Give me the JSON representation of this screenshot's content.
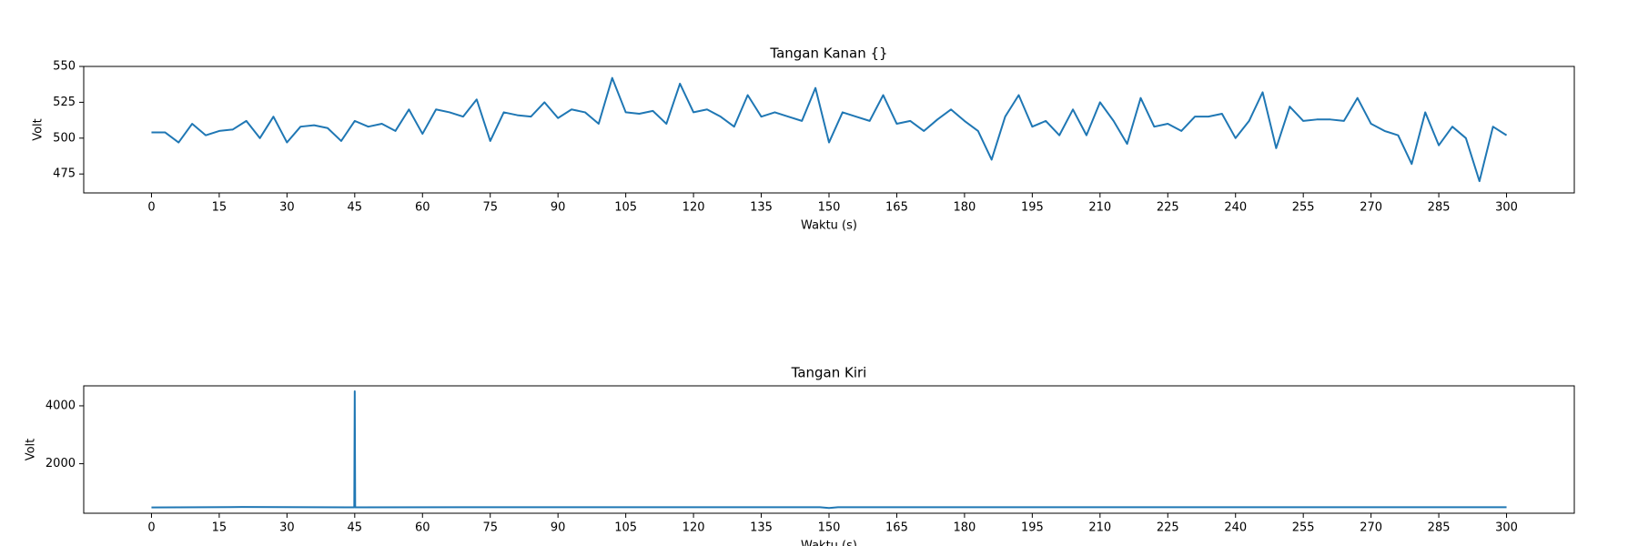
{
  "chart_data": [
    {
      "type": "line",
      "title": "Tangan Kanan {}",
      "xlabel": "Waktu (s)",
      "ylabel": "Volt",
      "x": [
        0,
        3,
        6,
        9,
        12,
        15,
        18,
        21,
        24,
        27,
        30,
        33,
        36,
        39,
        42,
        45,
        48,
        51,
        54,
        57,
        60,
        63,
        66,
        69,
        72,
        75,
        78,
        81,
        84,
        87,
        90,
        93,
        96,
        99,
        102,
        105,
        108,
        111,
        114,
        117,
        120,
        123,
        126,
        129,
        132,
        135,
        138,
        141,
        144,
        147,
        150,
        153,
        156,
        159,
        162,
        165,
        168,
        171,
        174,
        177,
        180,
        183,
        186,
        189,
        192,
        195,
        198,
        201,
        204,
        207,
        210,
        213,
        216,
        219,
        222,
        225,
        228,
        231,
        234,
        237,
        240,
        243,
        246,
        249,
        252,
        255,
        258,
        261,
        264,
        267,
        270,
        273,
        276,
        279,
        282,
        285,
        288,
        291,
        294,
        297,
        300
      ],
      "values": [
        504,
        504,
        497,
        510,
        502,
        505,
        506,
        512,
        500,
        515,
        497,
        508,
        509,
        507,
        498,
        512,
        508,
        510,
        505,
        520,
        503,
        520,
        518,
        515,
        527,
        498,
        518,
        516,
        515,
        525,
        514,
        520,
        518,
        510,
        542,
        518,
        517,
        519,
        510,
        538,
        518,
        520,
        515,
        508,
        530,
        515,
        518,
        515,
        512,
        535,
        497,
        518,
        515,
        512,
        530,
        510,
        512,
        505,
        513,
        520,
        512,
        505,
        485,
        515,
        530,
        508,
        512,
        502,
        520,
        502,
        525,
        512,
        496,
        528,
        508,
        510,
        505,
        515,
        515,
        517,
        500,
        512,
        532,
        493,
        522,
        512,
        513,
        513,
        512,
        528,
        510,
        505,
        502,
        482,
        518,
        495,
        508,
        500,
        470,
        508,
        502
      ],
      "color": "#1f77b4",
      "xlim": [
        -15,
        315
      ],
      "xticks": [
        0,
        15,
        30,
        45,
        60,
        75,
        90,
        105,
        120,
        135,
        150,
        165,
        180,
        195,
        210,
        225,
        240,
        255,
        270,
        285,
        300
      ],
      "ylim": [
        461.8,
        550
      ],
      "yticks": [
        475,
        500,
        525,
        550
      ]
    },
    {
      "type": "line",
      "title": "Tangan Kiri",
      "xlabel": "Waktu (s)",
      "ylabel": "Volt",
      "x": [
        0,
        20,
        44.9,
        45,
        45.1,
        100,
        148,
        150,
        152,
        200,
        300
      ],
      "values": [
        490,
        505,
        495,
        4500,
        495,
        500,
        498,
        470,
        498,
        497,
        497
      ],
      "color": "#1f77b4",
      "xlim": [
        -15,
        315
      ],
      "xticks": [
        0,
        15,
        30,
        45,
        60,
        75,
        90,
        105,
        120,
        135,
        150,
        165,
        180,
        195,
        210,
        225,
        240,
        255,
        270,
        285,
        300
      ],
      "ylim": [
        290,
        4690
      ],
      "yticks": [
        2000,
        4000
      ]
    }
  ]
}
